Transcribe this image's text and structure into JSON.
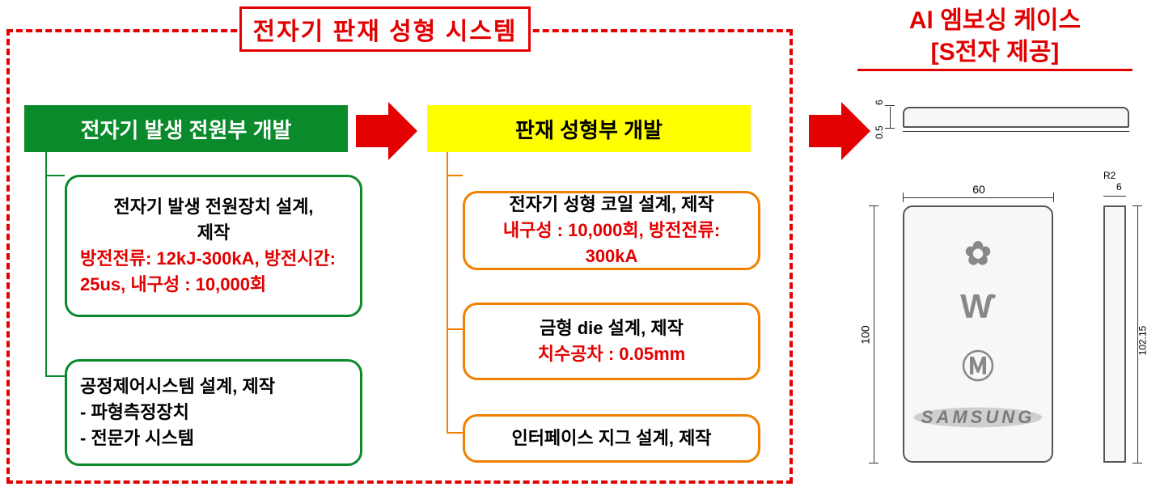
{
  "system": {
    "title": "전자기 판재 성형 시스템"
  },
  "case": {
    "line1": "Al 엠보싱 케이스",
    "line2": "[S전자 제공]"
  },
  "left": {
    "header": "전자기 발생 전원부 개발",
    "box1": {
      "black1": "전자기 발생 전원장치 설계,",
      "black2": "제작",
      "red1": "방전전류: 12kJ-300kA, 방전시간:",
      "red2": "25us, 내구성 : 10,000회"
    },
    "box2": {
      "l1": "공정제어시스템 설계, 제작",
      "l2": "- 파형측정장치",
      "l3": "- 전문가 시스템"
    },
    "colors": {
      "header_bg": "#0a8a2a",
      "header_fg": "#ffffff",
      "border": "#0a8a2a"
    }
  },
  "right": {
    "header": "판재 성형부 개발",
    "box1": {
      "black": "전자기 성형 코일 설계, 제작",
      "red": "내구성 : 10,000회, 방전전류: 300kA"
    },
    "box2": {
      "black": "금형 die 설계, 제작",
      "red": "치수공차 : 0.05mm"
    },
    "box3": {
      "black": "인터페이스 지그 설계, 제작"
    },
    "colors": {
      "header_bg": "#ffff00",
      "header_fg": "#000000",
      "border": "#f08000"
    }
  },
  "arrow_color": "#e30000",
  "drawing": {
    "top": {
      "dim1": "6",
      "dim2": "0.5"
    },
    "front": {
      "width_label": "60",
      "height_label": "100",
      "brand": "SAMSUNG"
    },
    "side": {
      "width_label": "6",
      "radius_label": "R2",
      "height_label": "102.15"
    }
  },
  "type": "flowchart"
}
